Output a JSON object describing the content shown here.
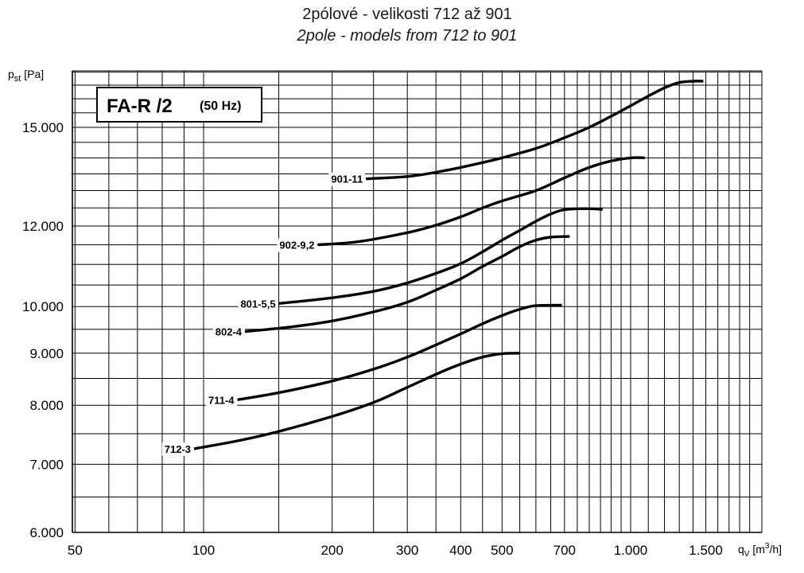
{
  "header": {
    "title_cz": "2pólové - velikosti 712 až 901",
    "title_en": "2pole - models from 712 to 901"
  },
  "badge": {
    "model": "FA-R /2",
    "freq": "(50 Hz)"
  },
  "chart_data": {
    "type": "line",
    "title": "2pólové - velikosti 712 až 901",
    "subtitle": "2pole - models from 712 to 901",
    "x_scale": "log",
    "y_scale": "log",
    "xlim": [
      50,
      1900
    ],
    "ylim": [
      6000,
      17200
    ],
    "xlabel_main": "q",
    "xlabel_sub": "V",
    "xlabel_unit": " [m",
    "xlabel_exp": "3",
    "xlabel_tail": "/h]",
    "ylabel_main": "p",
    "ylabel_sub": "st",
    "ylabel_unit": " [Pa]",
    "x_ticks": [
      {
        "value": 50,
        "label": "50"
      },
      {
        "value": 100,
        "label": "100"
      },
      {
        "value": 200,
        "label": "200"
      },
      {
        "value": 300,
        "label": "300"
      },
      {
        "value": 400,
        "label": "400"
      },
      {
        "value": 500,
        "label": "500"
      },
      {
        "value": 700,
        "label": "700"
      },
      {
        "value": 1000,
        "label": "1.000"
      },
      {
        "value": 1500,
        "label": "1.500"
      }
    ],
    "y_ticks": [
      {
        "value": 6000,
        "label": "6.000"
      },
      {
        "value": 7000,
        "label": "7.000"
      },
      {
        "value": 8000,
        "label": "8.000"
      },
      {
        "value": 9000,
        "label": "9.000"
      },
      {
        "value": 10000,
        "label": "10.000"
      },
      {
        "value": 12000,
        "label": "12.000"
      },
      {
        "value": 15000,
        "label": "15.000"
      }
    ],
    "series": [
      {
        "name": "712-3",
        "points": [
          [
            95,
            7250
          ],
          [
            120,
            7380
          ],
          [
            150,
            7540
          ],
          [
            200,
            7800
          ],
          [
            250,
            8050
          ],
          [
            300,
            8330
          ],
          [
            350,
            8580
          ],
          [
            400,
            8780
          ],
          [
            450,
            8920
          ],
          [
            500,
            8990
          ],
          [
            550,
            9000
          ]
        ]
      },
      {
        "name": "711-4",
        "points": [
          [
            120,
            8100
          ],
          [
            150,
            8230
          ],
          [
            200,
            8450
          ],
          [
            250,
            8680
          ],
          [
            300,
            8920
          ],
          [
            350,
            9170
          ],
          [
            400,
            9400
          ],
          [
            450,
            9620
          ],
          [
            500,
            9800
          ],
          [
            550,
            9940
          ],
          [
            600,
            10020
          ],
          [
            690,
            10030
          ]
        ]
      },
      {
        "name": "802-4",
        "points": [
          [
            125,
            9450
          ],
          [
            160,
            9550
          ],
          [
            200,
            9680
          ],
          [
            250,
            9880
          ],
          [
            300,
            10100
          ],
          [
            350,
            10380
          ],
          [
            400,
            10650
          ],
          [
            450,
            10950
          ],
          [
            500,
            11200
          ],
          [
            550,
            11450
          ],
          [
            600,
            11620
          ],
          [
            650,
            11700
          ],
          [
            720,
            11720
          ]
        ]
      },
      {
        "name": "801-5,5",
        "points": [
          [
            150,
            10070
          ],
          [
            200,
            10200
          ],
          [
            250,
            10350
          ],
          [
            300,
            10550
          ],
          [
            350,
            10780
          ],
          [
            400,
            11020
          ],
          [
            450,
            11320
          ],
          [
            500,
            11620
          ],
          [
            550,
            11880
          ],
          [
            600,
            12130
          ],
          [
            650,
            12330
          ],
          [
            700,
            12450
          ],
          [
            780,
            12480
          ],
          [
            860,
            12460
          ]
        ]
      },
      {
        "name": "902-9,2",
        "points": [
          [
            185,
            11500
          ],
          [
            230,
            11580
          ],
          [
            300,
            11820
          ],
          [
            350,
            12020
          ],
          [
            400,
            12250
          ],
          [
            450,
            12500
          ],
          [
            500,
            12700
          ],
          [
            600,
            13000
          ],
          [
            700,
            13380
          ],
          [
            800,
            13700
          ],
          [
            900,
            13900
          ],
          [
            1000,
            14000
          ],
          [
            1080,
            14000
          ]
        ]
      },
      {
        "name": "901-11",
        "points": [
          [
            240,
            13350
          ],
          [
            300,
            13420
          ],
          [
            350,
            13550
          ],
          [
            400,
            13700
          ],
          [
            450,
            13850
          ],
          [
            500,
            14000
          ],
          [
            600,
            14300
          ],
          [
            700,
            14650
          ],
          [
            800,
            15000
          ],
          [
            900,
            15380
          ],
          [
            1000,
            15750
          ],
          [
            1100,
            16100
          ],
          [
            1200,
            16400
          ],
          [
            1300,
            16600
          ],
          [
            1400,
            16650
          ],
          [
            1480,
            16650
          ]
        ]
      }
    ],
    "grid": true,
    "legend": "inline-labels"
  }
}
